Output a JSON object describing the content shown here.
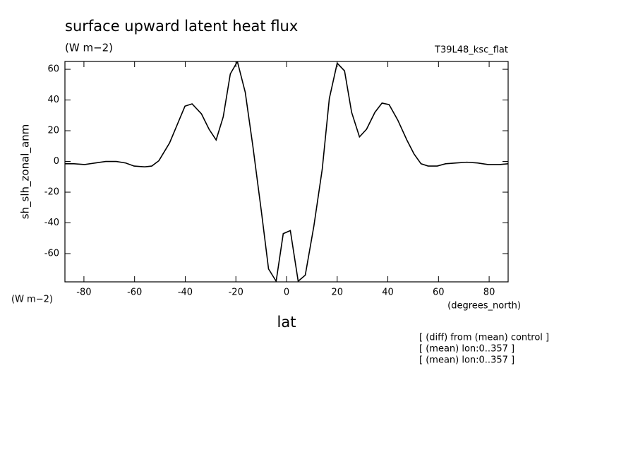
{
  "chart_data": {
    "type": "line",
    "title": "surface upward latent heat flux",
    "subtitle": "(W m−2)",
    "run_label": "T39L48_ksc_flat",
    "y_label": "sh_slh_zonal_anm",
    "y_units": "(W m−2)",
    "x_units": "(degrees_north)",
    "x_label": "lat",
    "notes": [
      "[ (diff) from (mean) control ]",
      "[ (mean) lon:0..357 ]",
      "[ (mean) lon:0..357 ]"
    ],
    "x": [
      -87.5,
      -83.9,
      -79.7,
      -75.5,
      -71.4,
      -67.2,
      -63.5,
      -60.2,
      -56.0,
      -53.2,
      -50.4,
      -46.2,
      -43.4,
      -40.1,
      -37.3,
      -33.6,
      -30.6,
      -27.8,
      -25.0,
      -22.2,
      -19.4,
      -16.3,
      -13.3,
      -9.9,
      -7.1,
      -4.1,
      -1.3,
      1.5,
      4.6,
      7.4,
      10.8,
      14.1,
      16.9,
      20.0,
      22.9,
      25.7,
      28.8,
      31.6,
      34.9,
      37.7,
      40.5,
      43.9,
      47.5,
      50.3,
      53.1,
      55.9,
      59.5,
      62.8,
      67.0,
      71.2,
      75.4,
      79.6,
      84.1,
      87.5
    ],
    "series": [
      {
        "color": "#000000",
        "values": [
          -1.5,
          -1.5,
          -2,
          -1,
          0,
          0,
          -1,
          -3,
          -3.5,
          -3,
          0.5,
          12,
          23,
          36,
          37.5,
          31,
          21,
          14,
          29,
          57,
          65,
          45,
          10,
          -33,
          -70,
          -78,
          -47,
          -45,
          -78,
          -74,
          -42,
          -5,
          41,
          64,
          59,
          32,
          16,
          21,
          32,
          38,
          37,
          27,
          14,
          5,
          -1.5,
          -3,
          -3,
          -1.5,
          -1,
          -0.5,
          -1,
          -2,
          -2,
          -1.5
        ]
      }
    ],
    "xlim": [
      -87.5,
      87.5
    ],
    "xticks": [
      -80,
      -60,
      -40,
      -20,
      0,
      20,
      40,
      60,
      80
    ],
    "ylim": [
      -78.4,
      65.1
    ],
    "yticks": [
      -60,
      -40,
      -20,
      0,
      20,
      40,
      60
    ],
    "grid": false
  }
}
